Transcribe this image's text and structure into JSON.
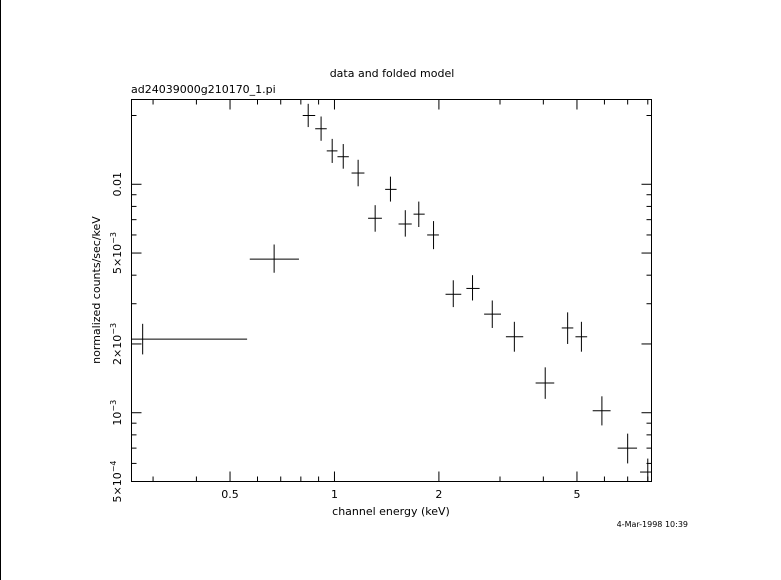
{
  "chart_data": {
    "type": "scatter",
    "title": "data and folded model",
    "subtitle": "ad24039000g210170_1.pi",
    "xlabel": "channel energy (keV)",
    "ylabel": "normalized counts/sec/keV",
    "timestamp": "4-Mar-1998 10:39",
    "x_scale": "log",
    "y_scale": "log",
    "xlim": [
      0.26,
      8.2
    ],
    "ylim": [
      0.0005,
      0.0235
    ],
    "x_ticks": [
      {
        "value": 0.5,
        "label": "0.5"
      },
      {
        "value": 1,
        "label": "1"
      },
      {
        "value": 2,
        "label": "2"
      },
      {
        "value": 5,
        "label": "5"
      }
    ],
    "y_ticks": [
      {
        "value": 0.0005,
        "label": "5×10",
        "exp": "−4"
      },
      {
        "value": 0.001,
        "label": "10",
        "exp": "−3"
      },
      {
        "value": 0.002,
        "label": "2×10",
        "exp": "−3"
      },
      {
        "value": 0.005,
        "label": "5×10",
        "exp": "−3"
      },
      {
        "value": 0.01,
        "label": "0.01",
        "exp": ""
      }
    ],
    "series": [
      {
        "points": [
          {
            "x": 0.28,
            "xlo": 0.26,
            "xhi": 0.56,
            "y": 0.0021,
            "ylo": 0.0018,
            "yhi": 0.00245
          },
          {
            "x": 0.67,
            "xlo": 0.57,
            "xhi": 0.79,
            "y": 0.0047,
            "ylo": 0.0041,
            "yhi": 0.00545
          },
          {
            "x": 0.84,
            "xlo": 0.81,
            "xhi": 0.88,
            "y": 0.02,
            "ylo": 0.0178,
            "yhi": 0.0225
          },
          {
            "x": 0.915,
            "xlo": 0.88,
            "xhi": 0.95,
            "y": 0.0175,
            "ylo": 0.0155,
            "yhi": 0.0198
          },
          {
            "x": 0.985,
            "xlo": 0.95,
            "xhi": 1.02,
            "y": 0.014,
            "ylo": 0.0124,
            "yhi": 0.0158
          },
          {
            "x": 1.06,
            "xlo": 1.02,
            "xhi": 1.1,
            "y": 0.0132,
            "ylo": 0.0117,
            "yhi": 0.015
          },
          {
            "x": 1.17,
            "xlo": 1.12,
            "xhi": 1.22,
            "y": 0.0112,
            "ylo": 0.0098,
            "yhi": 0.0128
          },
          {
            "x": 1.31,
            "xlo": 1.25,
            "xhi": 1.37,
            "y": 0.0071,
            "ylo": 0.0062,
            "yhi": 0.0081
          },
          {
            "x": 1.45,
            "xlo": 1.4,
            "xhi": 1.51,
            "y": 0.0095,
            "ylo": 0.0084,
            "yhi": 0.0108
          },
          {
            "x": 1.6,
            "xlo": 1.53,
            "xhi": 1.67,
            "y": 0.0067,
            "ylo": 0.0059,
            "yhi": 0.0077
          },
          {
            "x": 1.75,
            "xlo": 1.69,
            "xhi": 1.82,
            "y": 0.0074,
            "ylo": 0.0065,
            "yhi": 0.0084
          },
          {
            "x": 1.93,
            "xlo": 1.85,
            "xhi": 2.0,
            "y": 0.006,
            "ylo": 0.0052,
            "yhi": 0.0069
          },
          {
            "x": 2.2,
            "xlo": 2.09,
            "xhi": 2.32,
            "y": 0.0033,
            "ylo": 0.0029,
            "yhi": 0.0038
          },
          {
            "x": 2.5,
            "xlo": 2.4,
            "xhi": 2.62,
            "y": 0.0035,
            "ylo": 0.0031,
            "yhi": 0.004
          },
          {
            "x": 2.85,
            "xlo": 2.7,
            "xhi": 3.02,
            "y": 0.0027,
            "ylo": 0.00235,
            "yhi": 0.0031
          },
          {
            "x": 3.3,
            "xlo": 3.12,
            "xhi": 3.5,
            "y": 0.00215,
            "ylo": 0.00185,
            "yhi": 0.0025
          },
          {
            "x": 4.05,
            "xlo": 3.8,
            "xhi": 4.3,
            "y": 0.00135,
            "ylo": 0.00115,
            "yhi": 0.00158
          },
          {
            "x": 4.7,
            "xlo": 4.52,
            "xhi": 4.88,
            "y": 0.00235,
            "ylo": 0.002,
            "yhi": 0.00275
          },
          {
            "x": 5.15,
            "xlo": 4.95,
            "xhi": 5.35,
            "y": 0.00215,
            "ylo": 0.00185,
            "yhi": 0.0025
          },
          {
            "x": 5.9,
            "xlo": 5.55,
            "xhi": 6.25,
            "y": 0.00102,
            "ylo": 0.00088,
            "yhi": 0.00118
          },
          {
            "x": 7.0,
            "xlo": 6.55,
            "xhi": 7.45,
            "y": 0.0007,
            "ylo": 0.0006,
            "yhi": 0.00081
          },
          {
            "x": 8.0,
            "xlo": 7.6,
            "xhi": 8.2,
            "y": 0.00055,
            "ylo": 0.00048,
            "yhi": 0.00063
          }
        ]
      }
    ]
  }
}
